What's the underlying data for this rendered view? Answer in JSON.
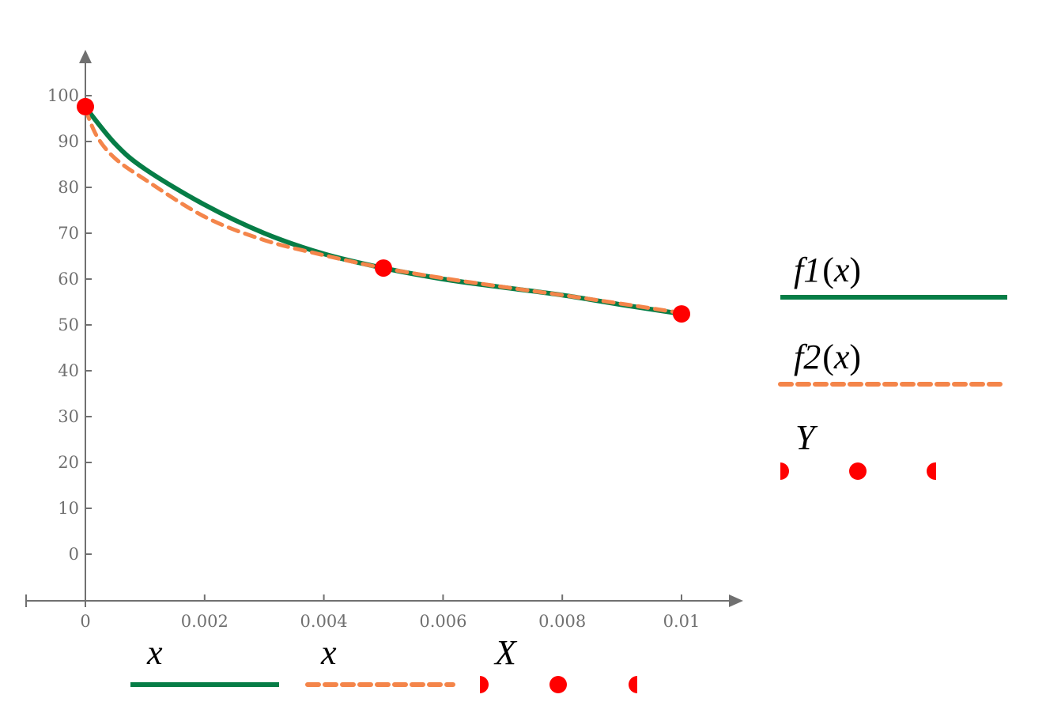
{
  "chart_data": {
    "type": "line",
    "title": "",
    "xlabel": "",
    "ylabel": "",
    "xlim": [
      -0.001,
      0.011
    ],
    "ylim": [
      -10,
      110
    ],
    "grid": false,
    "x_ticks": [
      "0",
      "0.002",
      "0.004",
      "0.006",
      "0.008",
      "0.01"
    ],
    "y_ticks": [
      "0",
      "10",
      "20",
      "30",
      "40",
      "50",
      "60",
      "70",
      "80",
      "90",
      "100"
    ],
    "series": [
      {
        "name": "f1(x)",
        "x_name": "x",
        "style": "solid",
        "color": "#067D46",
        "x": [
          0,
          0.0005,
          0.001,
          0.002,
          0.003,
          0.004,
          0.005,
          0.006,
          0.007,
          0.008,
          0.009,
          0.01
        ],
        "values": [
          97.5,
          89.5,
          84.0,
          76.2,
          70.0,
          65.5,
          62.4,
          60.0,
          58.2,
          56.5,
          54.4,
          52.4
        ]
      },
      {
        "name": "f2(x)",
        "x_name": "x",
        "style": "dashed",
        "color": "#F4854A",
        "x": [
          0,
          0.0002,
          0.0005,
          0.001,
          0.002,
          0.003,
          0.004,
          0.005,
          0.006,
          0.007,
          0.008,
          0.009,
          0.01
        ],
        "values": [
          97.0,
          91.0,
          86.3,
          81.7,
          73.6,
          68.5,
          65.2,
          62.4,
          60.2,
          58.3,
          56.5,
          54.6,
          52.6
        ]
      },
      {
        "name": "Y",
        "x_name": "X",
        "style": "markers",
        "color": "#FF0000",
        "x": [
          0,
          0.005,
          0.01
        ],
        "values": [
          97.6,
          62.4,
          52.4
        ]
      }
    ],
    "legend_right": [
      {
        "label_fn": "f1",
        "label_arg": "x",
        "style": "solid"
      },
      {
        "label_fn": "f2",
        "label_arg": "x",
        "style": "dashed"
      },
      {
        "label": "Y",
        "style": "markers"
      }
    ],
    "legend_bottom": [
      {
        "label": "x",
        "style": "solid"
      },
      {
        "label": "x",
        "style": "dashed"
      },
      {
        "label": "X",
        "style": "markers"
      }
    ],
    "legend_position": "right and bottom"
  },
  "labels": {
    "f1_fn": "f1",
    "f2_fn": "f2",
    "arg": "x",
    "Y": "Y",
    "x1": "x",
    "x2": "x",
    "X": "X",
    "lp": "(",
    "rp": ")"
  },
  "colors": {
    "axis": "#707070",
    "f1": "#067D46",
    "f2": "#F4854A",
    "points": "#FF0000"
  }
}
